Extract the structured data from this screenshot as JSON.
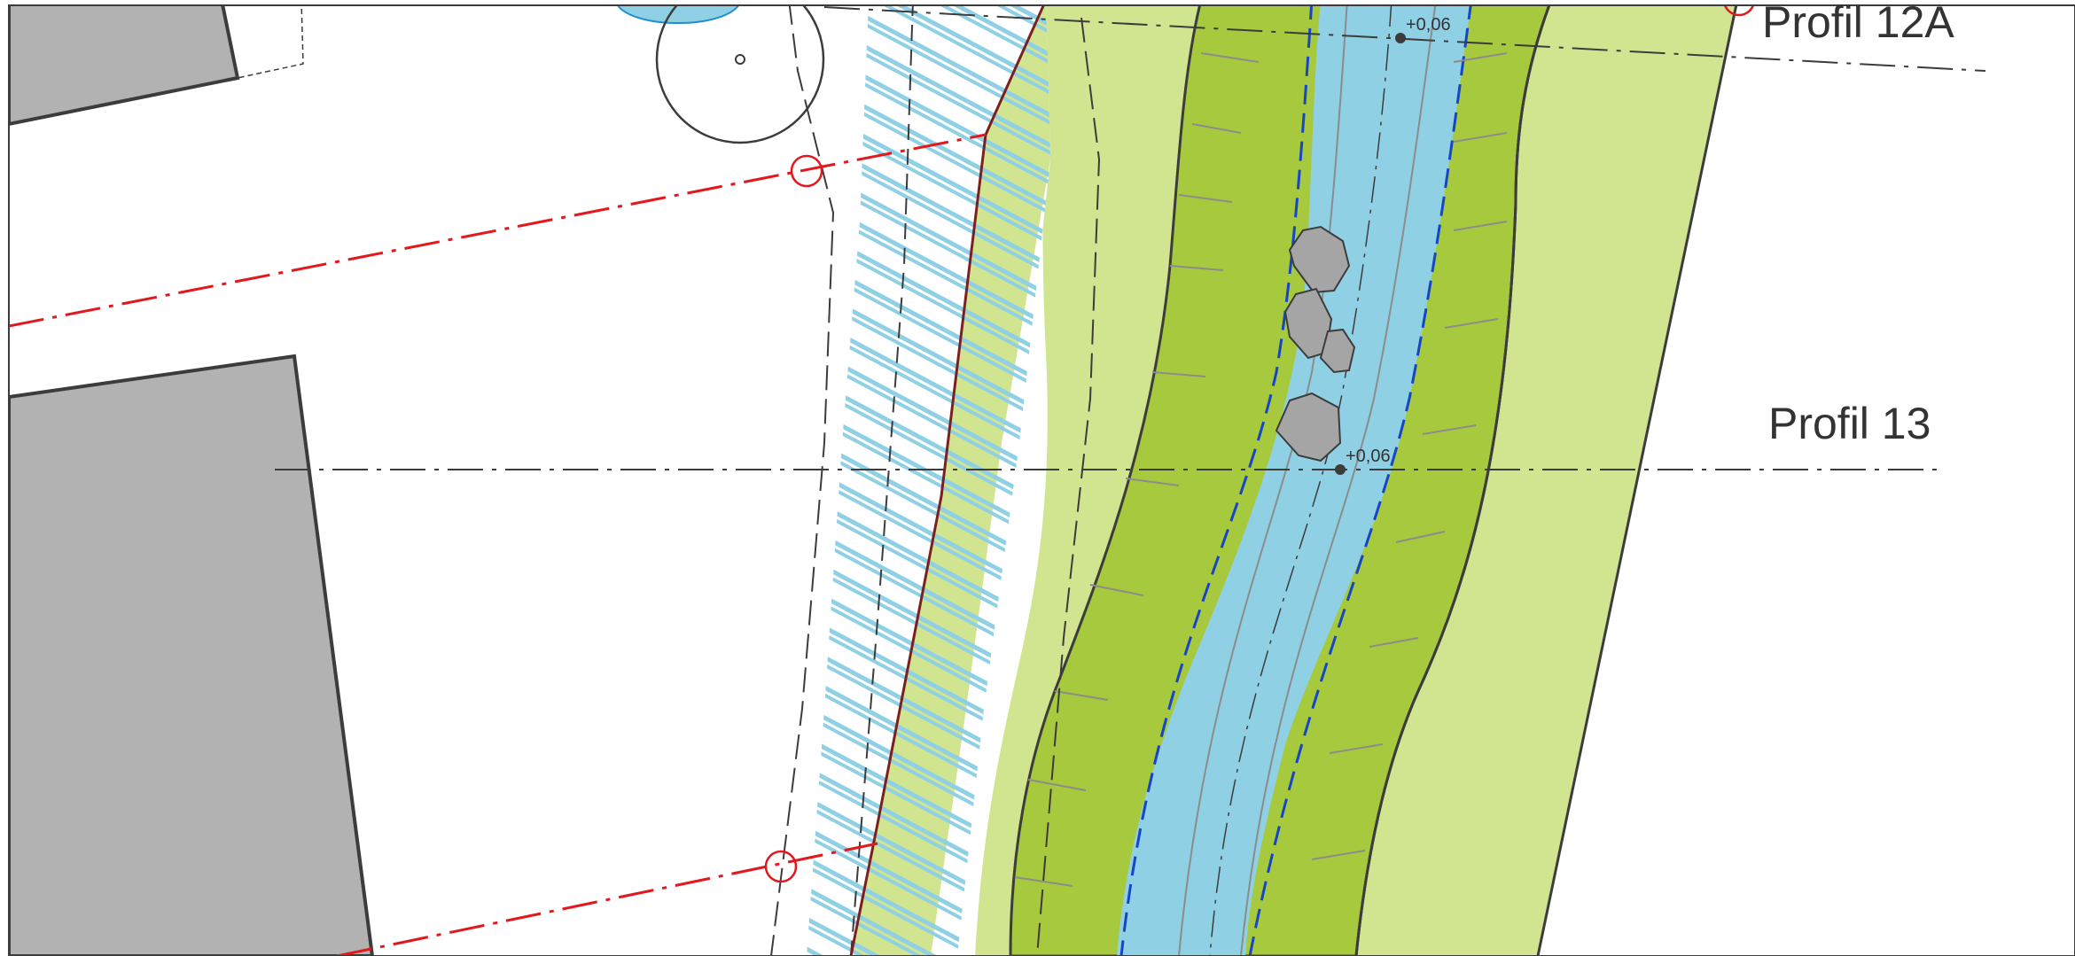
{
  "drawing": {
    "labels": {
      "profile_12a": "Profil 12A",
      "profile_13": "Profil 13",
      "elevation_upper": "+0,06",
      "elevation_lower": "+0,06"
    },
    "colors": {
      "background": "#ffffff",
      "building": "#b2b2b2",
      "outline": "#3c3c3c",
      "light_green": "#d1e591",
      "mid_green": "#a7c93d",
      "water": "#8fd0e5",
      "water_hatch": "#8fd0e5",
      "blue_dashed": "#1745c8",
      "red_line": "#e3181d",
      "boulder": "#a5a5a5",
      "grey_line": "#8c8c8c"
    }
  }
}
